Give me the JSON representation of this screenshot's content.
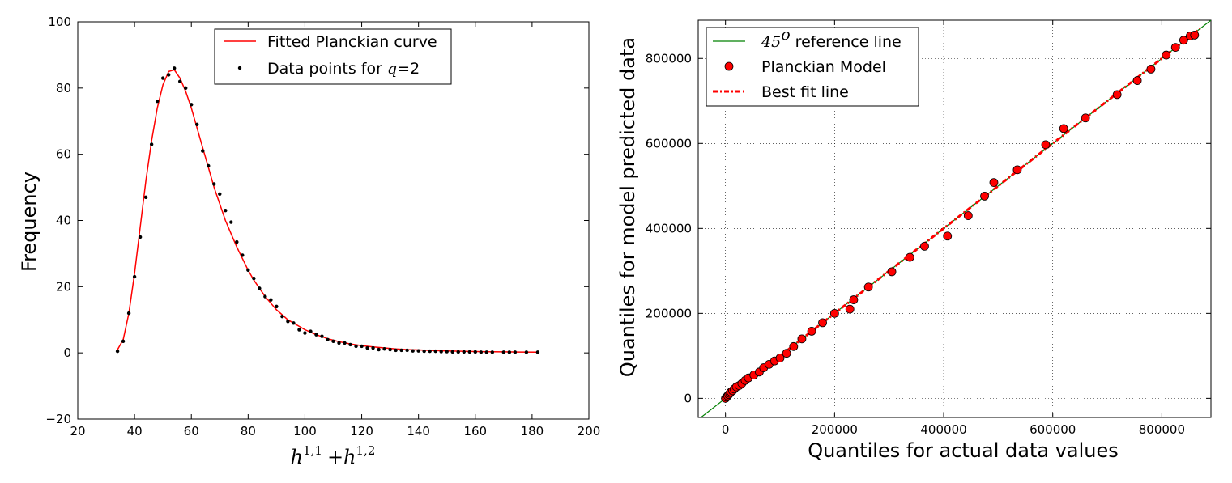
{
  "chart_data": [
    {
      "type": "line",
      "xlabel": "h^{1,1} + h^{1,2}",
      "xlabel_parts": {
        "h1": "h",
        "sup1": "1,1",
        "plus": "+",
        "h2": "h",
        "sup2": "1,2"
      },
      "ylabel": "Frequency",
      "xlim": [
        20,
        200
      ],
      "ylim": [
        -20,
        100
      ],
      "xticks": [
        20,
        40,
        60,
        80,
        100,
        120,
        140,
        160,
        180,
        200
      ],
      "xtick_labels": [
        "20",
        "40",
        "60",
        "80",
        "100",
        "120",
        "140",
        "160",
        "180",
        "200"
      ],
      "yticks": [
        -20,
        0,
        20,
        40,
        60,
        80,
        100
      ],
      "ytick_labels": [
        "−20",
        "0",
        "20",
        "40",
        "60",
        "80",
        "100"
      ],
      "grid": false,
      "legend": {
        "placement": "top-center",
        "entries": [
          {
            "label": "Fitted Planckian curve",
            "style": "line",
            "color": "#ff0000"
          },
          {
            "label_prefix": "Data points for ",
            "label_math": "q",
            "label_eq": "=",
            "label_num": "2",
            "style": "points",
            "color": "#000000"
          }
        ]
      },
      "series": [
        {
          "name": "Fitted Planckian curve",
          "kind": "line",
          "color": "#ff0000",
          "x": [
            34,
            36,
            38,
            40,
            42,
            44,
            46,
            48,
            50,
            52,
            54,
            56,
            58,
            60,
            62,
            64,
            66,
            68,
            70,
            72,
            74,
            76,
            78,
            80,
            82,
            84,
            86,
            88,
            90,
            92,
            94,
            96,
            98,
            100,
            104,
            108,
            112,
            116,
            120,
            124,
            128,
            132,
            136,
            140,
            145,
            150,
            155,
            160,
            165,
            170,
            175,
            182
          ],
          "y": [
            1,
            4,
            12,
            24,
            38,
            52,
            64,
            74,
            81,
            85,
            85.5,
            83,
            79,
            74,
            68,
            62,
            56,
            50,
            45,
            40,
            36,
            32,
            28.5,
            25,
            22,
            19.5,
            17,
            15,
            13,
            11.5,
            10,
            9,
            8,
            7,
            5.5,
            4.3,
            3.4,
            2.7,
            2.2,
            1.8,
            1.5,
            1.2,
            1.0,
            0.9,
            0.7,
            0.6,
            0.5,
            0.4,
            0.35,
            0.3,
            0.25,
            0.2
          ]
        },
        {
          "name": "Data points for q=2",
          "kind": "scatter",
          "color": "#000000",
          "x": [
            34,
            36,
            38,
            40,
            42,
            44,
            46,
            48,
            50,
            52,
            54,
            56,
            58,
            60,
            62,
            64,
            66,
            68,
            70,
            72,
            74,
            76,
            78,
            80,
            82,
            84,
            86,
            88,
            90,
            92,
            94,
            96,
            98,
            100,
            102,
            104,
            106,
            108,
            110,
            112,
            114,
            116,
            118,
            120,
            122,
            124,
            126,
            128,
            130,
            132,
            134,
            136,
            138,
            140,
            142,
            144,
            146,
            148,
            150,
            152,
            154,
            156,
            158,
            160,
            162,
            164,
            166,
            170,
            172,
            174,
            178,
            182
          ],
          "y": [
            0.5,
            3.5,
            12,
            23,
            35,
            47,
            63,
            76,
            83,
            84,
            86,
            82,
            80,
            75,
            69,
            61,
            56.5,
            51,
            48,
            43,
            39.5,
            33.5,
            29.5,
            25,
            22.5,
            19.5,
            17,
            16,
            14,
            11,
            9.5,
            9,
            7,
            6,
            6.5,
            5.5,
            5,
            4,
            3.5,
            3,
            3,
            2.5,
            2,
            2,
            1.5,
            1.5,
            1,
            1.2,
            1,
            0.8,
            0.8,
            0.8,
            0.6,
            0.6,
            0.5,
            0.5,
            0.5,
            0.4,
            0.4,
            0.3,
            0.3,
            0.3,
            0.3,
            0.3,
            0.2,
            0.2,
            0.2,
            0.2,
            0.2,
            0.2,
            0.2,
            0.2
          ]
        }
      ]
    },
    {
      "type": "scatter",
      "xlabel": "Quantiles for actual data values",
      "ylabel": "Quantiles for model predicted data",
      "xlim": [
        -50000,
        890000
      ],
      "ylim": [
        -45000,
        890000
      ],
      "xticks": [
        0,
        200000,
        400000,
        600000,
        800000
      ],
      "xtick_labels": [
        "0",
        "200000",
        "400000",
        "600000",
        "800000"
      ],
      "yticks": [
        0,
        200000,
        400000,
        600000,
        800000
      ],
      "ytick_labels": [
        "0",
        "200000",
        "400000",
        "600000",
        "800000"
      ],
      "grid": true,
      "legend": {
        "placement": "top-left",
        "entries": [
          {
            "label_math": "45",
            "label_sup": "o",
            "label_rest": " reference line",
            "style": "line",
            "color": "#008000"
          },
          {
            "label": "Planckian Model",
            "style": "marker",
            "color": "#ff0000"
          },
          {
            "label": "Best fit line",
            "style": "dashdot",
            "color": "#ff0000"
          }
        ]
      },
      "series": [
        {
          "name": "45o reference line",
          "kind": "line",
          "color": "#008000",
          "x": [
            -50000,
            890000
          ],
          "y": [
            -50000,
            890000
          ]
        },
        {
          "name": "Best fit line",
          "kind": "dashdot",
          "color": "#ff0000",
          "x": [
            0,
            870000
          ],
          "y": [
            0,
            870000
          ]
        },
        {
          "name": "Planckian Model",
          "kind": "scatter",
          "color": "#ff0000",
          "x": [
            0,
            2000,
            4000,
            6000,
            8000,
            10000,
            13000,
            16000,
            20000,
            25000,
            30000,
            36000,
            42000,
            52000,
            62000,
            70000,
            80000,
            90000,
            100000,
            112000,
            125000,
            140000,
            158000,
            178000,
            200000,
            228000,
            235000,
            262000,
            305000,
            338000,
            365000,
            407000,
            445000,
            475000,
            492000,
            535000,
            587000,
            620000,
            660000,
            718000,
            755000,
            780000,
            808000,
            825000,
            840000,
            852000,
            860000
          ],
          "y": [
            0,
            3000,
            6000,
            9000,
            12000,
            15000,
            18000,
            22000,
            27000,
            30000,
            35000,
            42000,
            48000,
            55000,
            62000,
            72000,
            80000,
            88000,
            95000,
            106000,
            122000,
            140000,
            158000,
            178000,
            200000,
            210000,
            232000,
            262000,
            298000,
            332000,
            358000,
            382000,
            430000,
            476000,
            508000,
            538000,
            597000,
            635000,
            660000,
            715000,
            748000,
            775000,
            808000,
            826000,
            843000,
            853000,
            855000
          ]
        }
      ]
    }
  ]
}
